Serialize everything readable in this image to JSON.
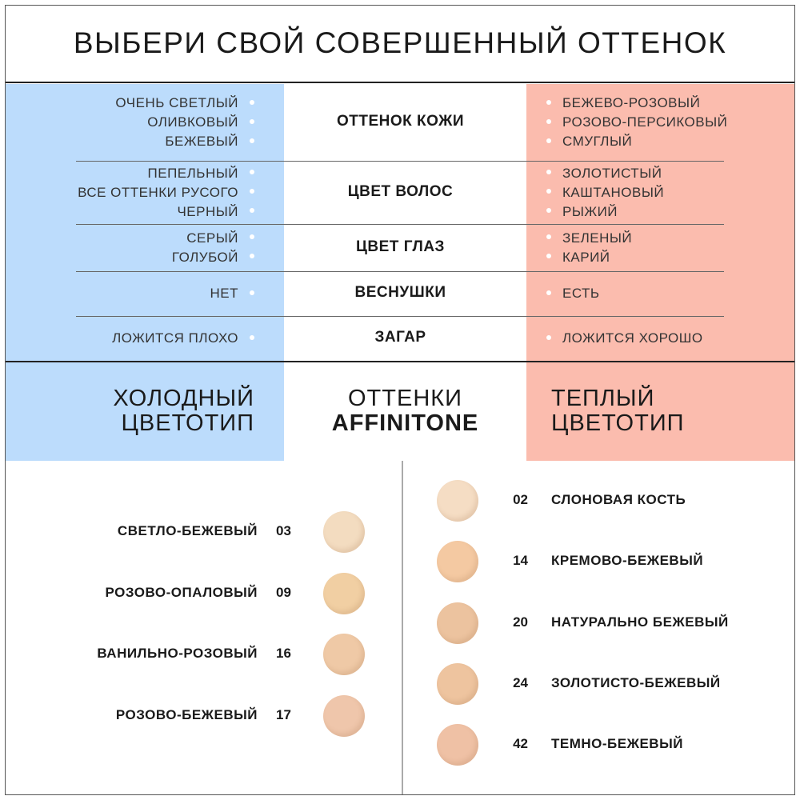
{
  "title": "ВЫБЕРИ СВОЙ СОВЕРШЕННЫЙ ОТТЕНОК",
  "colors": {
    "cold": "#bcdcfc",
    "warm": "#fbbcae"
  },
  "rows": [
    {
      "label": "ОТТЕНОК КОЖИ",
      "cold": [
        "ОЧЕНЬ СВЕТЛЫЙ",
        "ОЛИВКОВЫЙ",
        "БЕЖЕВЫЙ"
      ],
      "warm": [
        "БЕЖЕВО-РОЗОВЫЙ",
        "РОЗОВО-ПЕРСИКОВЫЙ",
        "СМУГЛЫЙ"
      ]
    },
    {
      "label": "ЦВЕТ ВОЛОС",
      "cold": [
        "ПЕПЕЛЬНЫЙ",
        "ВСЕ ОТТЕНКИ РУСОГО",
        "ЧЕРНЫЙ"
      ],
      "warm": [
        "ЗОЛОТИСТЫЙ",
        "КАШТАНОВЫЙ",
        "РЫЖИЙ"
      ]
    },
    {
      "label": "ЦВЕТ ГЛАЗ",
      "cold": [
        "СЕРЫЙ",
        "ГОЛУБОЙ"
      ],
      "warm": [
        "ЗЕЛЕНЫЙ",
        "КАРИЙ"
      ]
    },
    {
      "label": "ВЕСНУШКИ",
      "cold": [
        "НЕТ"
      ],
      "warm": [
        "ЕСТЬ"
      ]
    },
    {
      "label": "ЗАГАР",
      "cold": [
        "ЛОЖИТСЯ ПЛОХО"
      ],
      "warm": [
        "ЛОЖИТСЯ ХОРОШО"
      ]
    }
  ],
  "types": {
    "cold_line1": "ХОЛОДНЫЙ",
    "cold_line2": "ЦВЕТОТИП",
    "center_line1": "ОТТЕНКИ",
    "center_line2": "AFFINITONE",
    "warm_line1": "ТЕПЛЫЙ",
    "warm_line2": "ЦВЕТОТИП"
  },
  "cold_shades": [
    {
      "name": "СВЕТЛО-БЕЖЕВЫЙ",
      "number": "03",
      "color": "#f3dcc0"
    },
    {
      "name": "РОЗОВО-ОПАЛОВЫЙ",
      "number": "09",
      "color": "#f1cfa3"
    },
    {
      "name": "ВАНИЛЬНО-РОЗОВЫЙ",
      "number": "16",
      "color": "#efc9a6"
    },
    {
      "name": "РОЗОВО-БЕЖЕВЫЙ",
      "number": "17",
      "color": "#efc6ab"
    }
  ],
  "warm_shades": [
    {
      "name": "СЛОНОВАЯ КОСТЬ",
      "number": "02",
      "color": "#f5ddc4"
    },
    {
      "name": "КРЕМОВО-БЕЖЕВЫЙ",
      "number": "14",
      "color": "#f4c9a2"
    },
    {
      "name": "НАТУРАЛЬНО БЕЖЕВЫЙ",
      "number": "20",
      "color": "#ecc39f"
    },
    {
      "name": "ЗОЛОТИСТО-БЕЖЕВЫЙ",
      "number": "24",
      "color": "#eec49f"
    },
    {
      "name": "ТЕМНО-БЕЖЕВЫЙ",
      "number": "42",
      "color": "#efc1a5"
    }
  ]
}
